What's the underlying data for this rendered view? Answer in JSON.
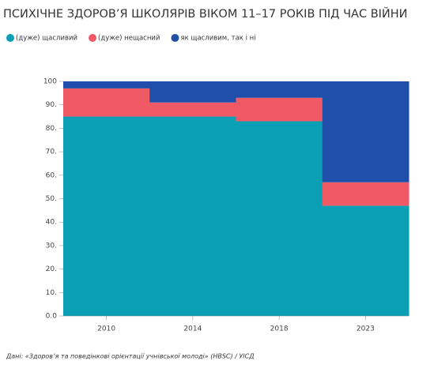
{
  "chart_data": {
    "type": "stacked_bar",
    "title": "ПСИХІЧНЕ ЗДОРОВ’Я ШКОЛЯРІВ ВІКОМ 11–17 РОКІВ ПІД ЧАС ВІЙНИ",
    "categories": [
      "2010",
      "2014",
      "2018",
      "2023"
    ],
    "series": [
      {
        "name": "(дуже) щасливий",
        "color": "#0a9fb5",
        "values": [
          85,
          85,
          83,
          47
        ]
      },
      {
        "name": "(дуже) нещасний",
        "color": "#f05a64",
        "values": [
          12,
          6,
          10,
          10
        ]
      },
      {
        "name": "як щасливим, так і ні",
        "color": "#1f4fa8",
        "values": [
          3,
          9,
          7,
          43
        ]
      }
    ],
    "ylim": [
      0,
      100
    ],
    "yticks": [
      {
        "value": 0,
        "label": "0.0"
      },
      {
        "value": 10,
        "label": "10."
      },
      {
        "value": 20,
        "label": "20."
      },
      {
        "value": 30,
        "label": "30."
      },
      {
        "value": 40,
        "label": "40."
      },
      {
        "value": 50,
        "label": "50."
      },
      {
        "value": 60,
        "label": "60."
      },
      {
        "value": 70,
        "label": "70."
      },
      {
        "value": 80,
        "label": "80."
      },
      {
        "value": 90,
        "label": "90."
      },
      100
    ],
    "source": "Дані: «Здоров’я та поведінкові орієнтації учнівської молоді» (HBSC) / УІСД"
  }
}
